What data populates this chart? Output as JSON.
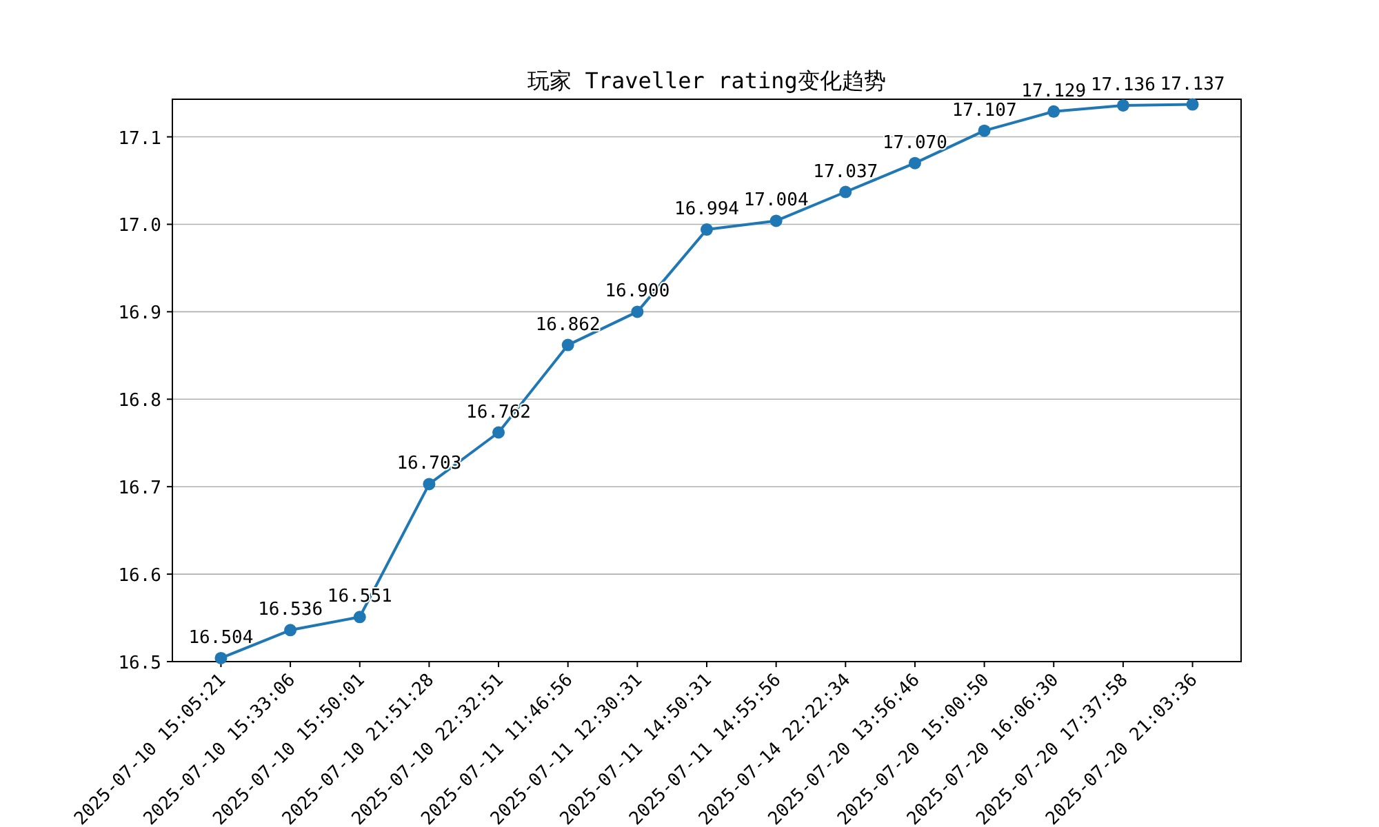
{
  "chart_data": {
    "type": "line",
    "title": "玩家 Traveller rating变化趋势",
    "categories": [
      "2025-07-10 15:05:21",
      "2025-07-10 15:33:06",
      "2025-07-10 15:50:01",
      "2025-07-10 21:51:28",
      "2025-07-10 22:32:51",
      "2025-07-11 11:46:56",
      "2025-07-11 12:30:31",
      "2025-07-11 14:50:31",
      "2025-07-11 14:55:56",
      "2025-07-14 22:22:34",
      "2025-07-20 13:56:46",
      "2025-07-20 15:00:50",
      "2025-07-20 16:06:30",
      "2025-07-20 17:37:58",
      "2025-07-20 21:03:36"
    ],
    "values": [
      16.504,
      16.536,
      16.551,
      16.703,
      16.762,
      16.862,
      16.9,
      16.994,
      17.004,
      17.037,
      17.07,
      17.107,
      17.129,
      17.136,
      17.137
    ],
    "value_labels": [
      "16.504",
      "16.536",
      "16.551",
      "16.703",
      "16.762",
      "16.862",
      "16.900",
      "16.994",
      "17.004",
      "17.037",
      "17.070",
      "17.107",
      "17.129",
      "17.136",
      "17.137"
    ],
    "color": "#1f77b4",
    "ylim": [
      16.5,
      17.143
    ],
    "yticks": [
      {
        "value": 16.5,
        "label": "16.5"
      },
      {
        "value": 16.6,
        "label": "16.6"
      },
      {
        "value": 16.7,
        "label": "16.7"
      },
      {
        "value": 16.8,
        "label": "16.8"
      },
      {
        "value": 16.9,
        "label": "16.9"
      },
      {
        "value": 17.0,
        "label": "17.0"
      },
      {
        "value": 17.1,
        "label": "17.1"
      }
    ],
    "grid": "y",
    "marker": "circle",
    "line_style": "solid"
  }
}
